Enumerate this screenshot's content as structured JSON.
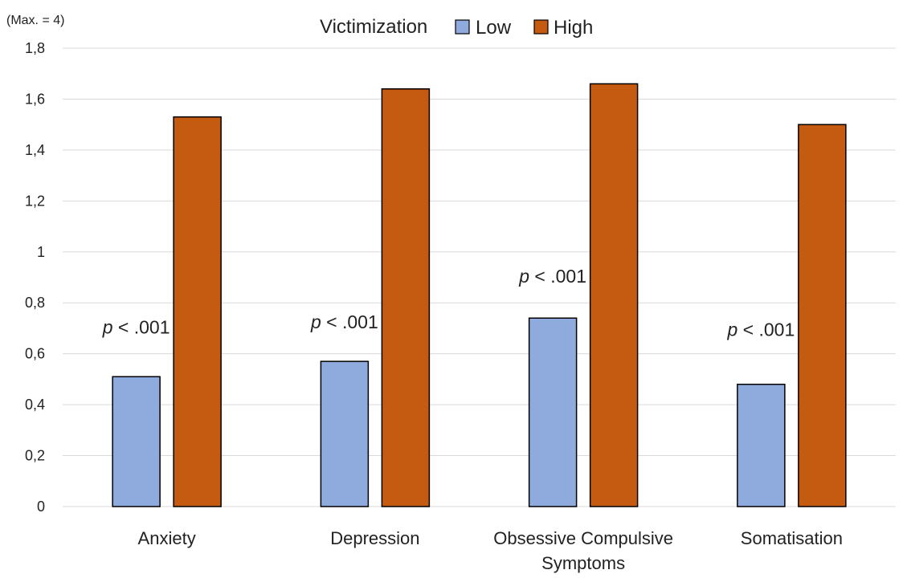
{
  "chart_data": {
    "type": "bar",
    "unit_label": "(Max. = 4)",
    "legend": {
      "title": "Victimization",
      "position": "top-center"
    },
    "categories": [
      [
        "Anxiety"
      ],
      [
        "Depression"
      ],
      [
        "Obsessive Compulsive",
        "Symptoms"
      ],
      [
        "Somatisation"
      ]
    ],
    "series": [
      {
        "name": "Low",
        "color": "#8faadc",
        "values": [
          0.51,
          0.57,
          0.74,
          0.48
        ]
      },
      {
        "name": "High",
        "color": "#c55a11",
        "values": [
          1.53,
          1.64,
          1.66,
          1.5
        ]
      }
    ],
    "annotations": [
      {
        "category": 0,
        "p_symbol": "p",
        "text": " < .001",
        "y": 0.68
      },
      {
        "category": 1,
        "p_symbol": "p",
        "text": " < .001",
        "y": 0.7
      },
      {
        "category": 2,
        "p_symbol": "p",
        "text": " < .001",
        "y": 0.88
      },
      {
        "category": 3,
        "p_symbol": "p",
        "text": " < .001",
        "y": 0.67
      }
    ],
    "yticks": [
      "0",
      "0,2",
      "0,4",
      "0,6",
      "0,8",
      "1",
      "1,2",
      "1,4",
      "1,6",
      "1,8"
    ],
    "ylim": [
      0,
      1.8
    ],
    "grid": true
  }
}
